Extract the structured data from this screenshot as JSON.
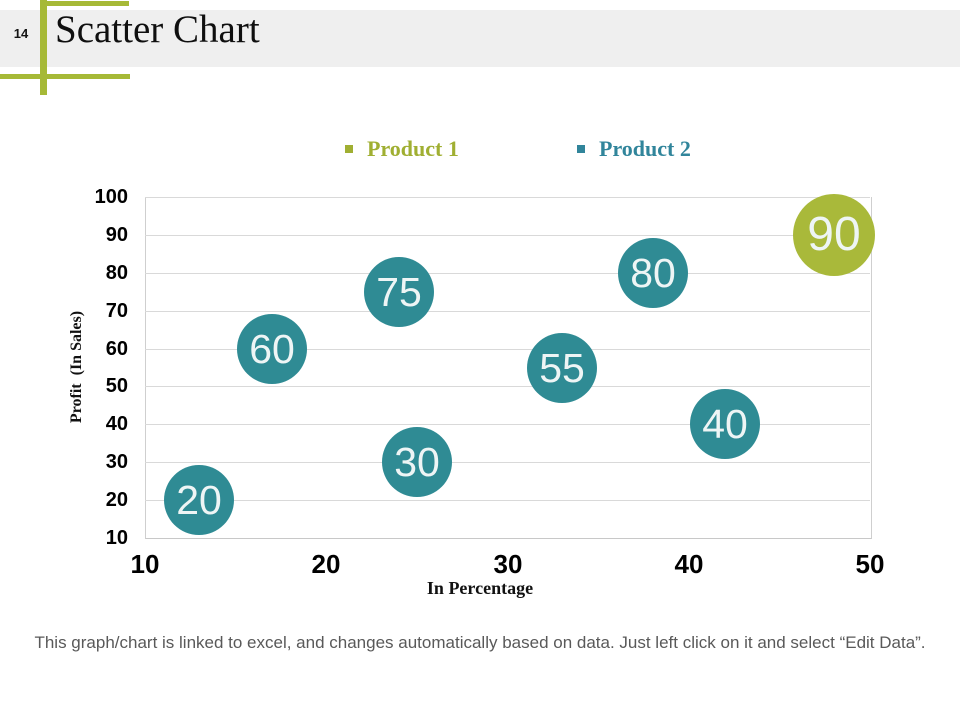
{
  "slide": {
    "page_number": "14",
    "title": "Scatter Chart",
    "footer": "This graph/chart is linked to excel, and changes automatically based on data. Just left click on it and select “Edit Data”."
  },
  "colors": {
    "accent_green": "#a6b937",
    "header_band": "#efefef",
    "gridline": "#d9d9d9",
    "footer_text": "#595959",
    "bubble_label": "#eef5f5",
    "legend_product1_text": "#a0af32",
    "legend_product2_text": "#31859b"
  },
  "chart_data": {
    "type": "scatter",
    "title": "",
    "xlabel": "In Percentage",
    "ylabel": "Profit  (In Sales)",
    "xlim": [
      10,
      50
    ],
    "ylim": [
      10,
      100
    ],
    "x_ticks": [
      10,
      20,
      30,
      40,
      50
    ],
    "y_ticks": [
      10,
      20,
      30,
      40,
      50,
      60,
      70,
      80,
      90,
      100
    ],
    "grid": "horizontal",
    "legend_position": "top",
    "series": [
      {
        "name": "Product 1",
        "color": "#a9b93a",
        "marker_size": 82,
        "points": [
          {
            "x": 48,
            "y": 90,
            "label": "90"
          }
        ]
      },
      {
        "name": "Product 2",
        "color": "#2f8b94",
        "marker_size": 70,
        "points": [
          {
            "x": 13,
            "y": 20,
            "label": "20"
          },
          {
            "x": 17,
            "y": 60,
            "label": "60"
          },
          {
            "x": 24,
            "y": 75,
            "label": "75"
          },
          {
            "x": 25,
            "y": 30,
            "label": "30"
          },
          {
            "x": 33,
            "y": 55,
            "label": "55"
          },
          {
            "x": 38,
            "y": 80,
            "label": "80"
          },
          {
            "x": 42,
            "y": 40,
            "label": "40"
          }
        ]
      }
    ]
  }
}
